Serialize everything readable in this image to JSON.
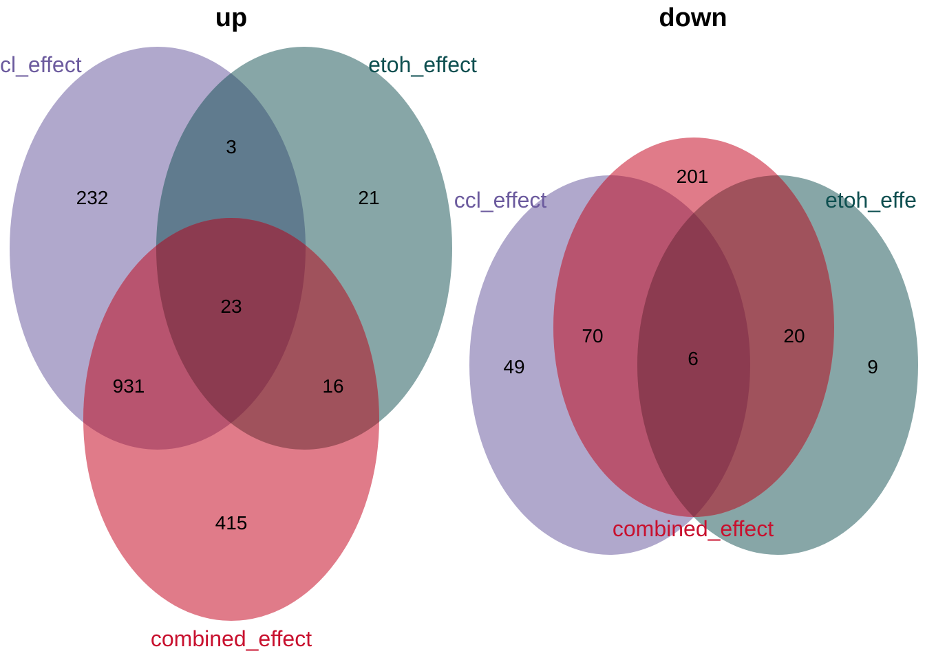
{
  "colors": {
    "ccl_effect": "#6c5b9e",
    "etoh_effect": "#0e4f50",
    "combined_effect": "#c8102e",
    "fill_ccl": "#b0a8cc",
    "fill_etoh": "#87a6a7",
    "fill_combined": "#e07b89",
    "fill_ccl_etoh": "#607b8e",
    "fill_ccl_combined": "#b8546f",
    "fill_etoh_combined": "#a0525c",
    "fill_all": "#8c3b50"
  },
  "panels": [
    {
      "id": "up",
      "title": "up",
      "set_labels": {
        "ccl": "cl_effect",
        "etoh": "etoh_effect",
        "combined": "combined_effect"
      },
      "counts": {
        "ccl_only": "232",
        "etoh_only": "21",
        "ccl_etoh": "3",
        "all": "23",
        "ccl_combined": "931",
        "etoh_combined": "16",
        "combined_only": "415"
      }
    },
    {
      "id": "down",
      "title": "down",
      "set_labels": {
        "ccl": "ccl_effect",
        "etoh": "etoh_effe",
        "combined": "combined_effect"
      },
      "counts": {
        "ccl_only": "49",
        "etoh_only": "9",
        "combined_only": "201",
        "ccl_combined": "70",
        "etoh_combined": "20",
        "all": "6"
      }
    }
  ]
}
